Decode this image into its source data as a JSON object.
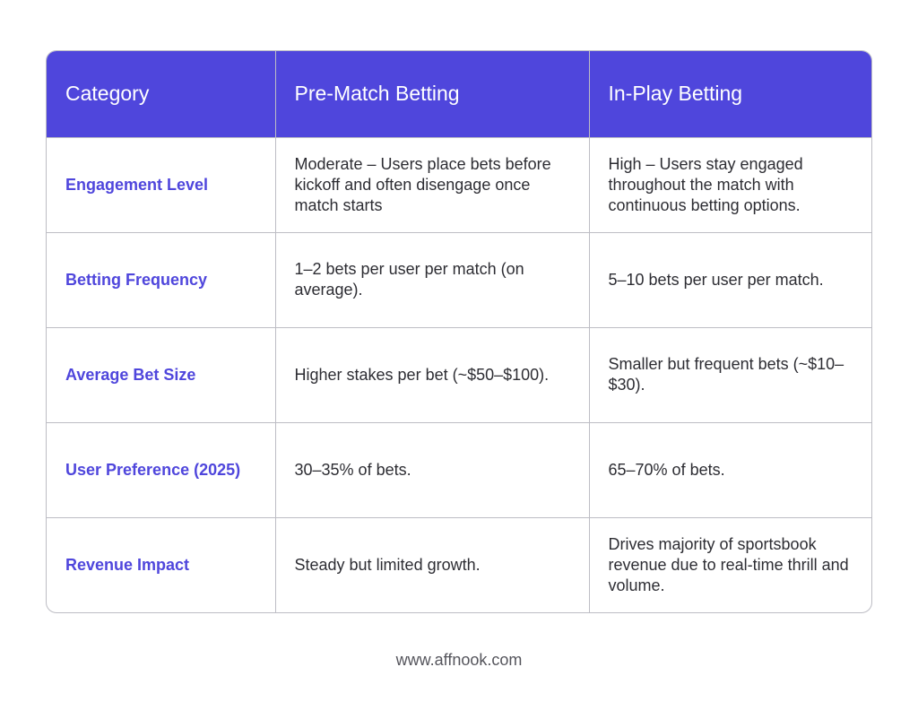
{
  "table": {
    "headers": [
      "Category",
      "Pre-Match Betting",
      "In-Play Betting"
    ],
    "rows": [
      {
        "category": "Engagement Level",
        "pre_match": "Moderate – Users place bets before kickoff and often disengage once match starts",
        "in_play": "High – Users stay engaged throughout the match with continuous betting options."
      },
      {
        "category": "Betting Frequency",
        "pre_match": "1–2 bets per user per match (on average).",
        "in_play": "5–10 bets per user per match."
      },
      {
        "category": "Average Bet Size",
        "pre_match": "Higher stakes per bet (~$50–$100).",
        "in_play": "Smaller but frequent bets (~$10–$30)."
      },
      {
        "category": "User Preference (2025)",
        "pre_match": "30–35% of bets.",
        "in_play": "65–70% of bets."
      },
      {
        "category": "Revenue Impact",
        "pre_match": "Steady but limited growth.",
        "in_play": "Drives majority of sportsbook revenue due to real-time thrill and volume."
      }
    ]
  },
  "footer": {
    "url": "www.affnook.com"
  },
  "colors": {
    "header_bg": "#4f46dc",
    "category_text": "#4f46dc",
    "body_text": "#2d2d33",
    "border": "#bdbdc4"
  }
}
